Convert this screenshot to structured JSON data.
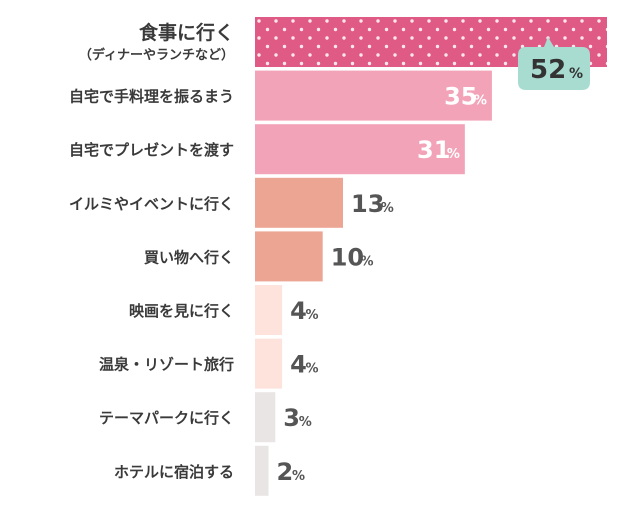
{
  "chart_data": {
    "type": "bar",
    "orientation": "horizontal",
    "unit": "%",
    "categories": [
      "食事に行く",
      "自宅で手料理を振るまう",
      "自宅でプレゼントを渡す",
      "イルミやイベントに行く",
      "買い物へ行く",
      "映画を見に行く",
      "温泉・リゾート旅行",
      "テーマパークに行く",
      "ホテルに宿泊する"
    ],
    "subtitles": [
      "（ディナーやランチなど）",
      "",
      "",
      "",
      "",
      "",
      "",
      "",
      ""
    ],
    "values": [
      52,
      35,
      31,
      13,
      10,
      4,
      4,
      3,
      2
    ],
    "xlim": [
      0,
      52
    ],
    "colors": [
      "#e05a86",
      "#f2a3b8",
      "#f2a3b8",
      "#eda593",
      "#eda593",
      "#fde3dc",
      "#fde3dc",
      "#e9e5e5",
      "#e9e5e5"
    ],
    "highlight": {
      "index": 0,
      "pattern": "white-polka-dots",
      "bubble_color": "#a9dcd0"
    },
    "grid": false,
    "legend": "none"
  }
}
